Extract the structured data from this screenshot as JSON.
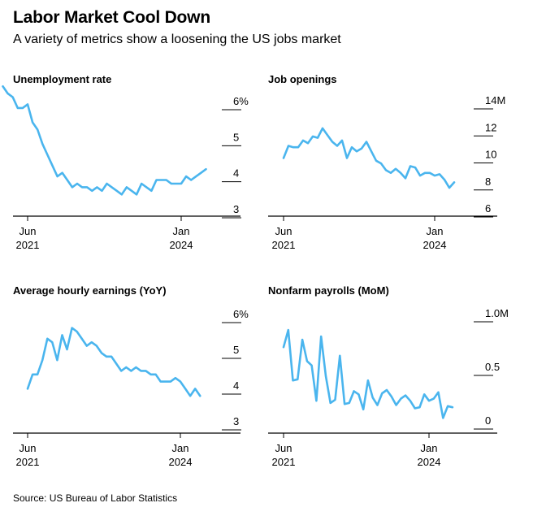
{
  "title": "Labor Market Cool Down",
  "subtitle": "A variety of metrics show a loosening the US jobs market",
  "source": "Source: US Bureau of Labor Statistics",
  "colors": {
    "line": "#4ab5ee",
    "axis": "#000000",
    "text": "#000000"
  },
  "chart_data": [
    {
      "type": "line",
      "title": "Unemployment rate",
      "x_tick_labels": [
        {
          "top": "Jun",
          "bottom": "2021"
        },
        {
          "top": "Jan",
          "bottom": "2024"
        }
      ],
      "y_ticks": [
        3,
        4,
        5,
        6
      ],
      "y_tick_labels": [
        "3",
        "4",
        "5",
        "6%"
      ],
      "ylim": [
        3,
        6
      ],
      "x_start": "2021-01",
      "series": [
        {
          "values": [
            6.4,
            6.2,
            6.1,
            5.8,
            5.8,
            5.9,
            5.4,
            5.2,
            4.8,
            4.5,
            4.2,
            3.9,
            4.0,
            3.8,
            3.6,
            3.7,
            3.6,
            3.6,
            3.5,
            3.6,
            3.5,
            3.7,
            3.6,
            3.5,
            3.4,
            3.6,
            3.5,
            3.4,
            3.7,
            3.6,
            3.5,
            3.8,
            3.8,
            3.8,
            3.7,
            3.7,
            3.7,
            3.9,
            3.8,
            3.9,
            4.0,
            4.1
          ]
        }
      ]
    },
    {
      "type": "line",
      "title": "Job openings",
      "x_tick_labels": [
        {
          "top": "Jun",
          "bottom": "2021"
        },
        {
          "top": "Jan",
          "bottom": "2024"
        }
      ],
      "y_ticks": [
        6,
        8,
        10,
        12,
        14
      ],
      "y_tick_labels": [
        "6",
        "8",
        "10",
        "12",
        "14M"
      ],
      "ylim": [
        6,
        14
      ],
      "x_start": "2021-06",
      "series": [
        {
          "values": [
            9.7,
            10.6,
            10.5,
            10.5,
            11.0,
            10.8,
            11.3,
            11.2,
            11.9,
            11.4,
            10.9,
            10.6,
            11.0,
            9.7,
            10.5,
            10.2,
            10.4,
            10.9,
            10.2,
            9.5,
            9.3,
            8.8,
            8.6,
            8.9,
            8.6,
            8.2,
            9.1,
            9.0,
            8.4,
            8.6,
            8.6,
            8.4,
            8.5,
            8.1,
            7.5,
            7.9
          ]
        }
      ]
    },
    {
      "type": "line",
      "title": "Average hourly earnings (YoY)",
      "x_tick_labels": [
        {
          "top": "Jun",
          "bottom": "2021"
        },
        {
          "top": "Jan",
          "bottom": "2024"
        }
      ],
      "y_ticks": [
        3,
        4,
        5,
        6
      ],
      "y_tick_labels": [
        "3",
        "4",
        "5",
        "6%"
      ],
      "ylim": [
        3,
        6
      ],
      "x_start": "2021-06",
      "series": [
        {
          "values": [
            3.9,
            4.3,
            4.3,
            4.7,
            5.3,
            5.2,
            4.7,
            5.4,
            5.0,
            5.6,
            5.5,
            5.3,
            5.1,
            5.2,
            5.1,
            4.9,
            4.8,
            4.8,
            4.6,
            4.4,
            4.5,
            4.4,
            4.5,
            4.4,
            4.4,
            4.3,
            4.3,
            4.1,
            4.1,
            4.1,
            4.2,
            4.1,
            3.9,
            3.7,
            3.9,
            3.7
          ]
        }
      ]
    },
    {
      "type": "line",
      "title": "Nonfarm payrolls (MoM)",
      "x_tick_labels": [
        {
          "top": "Jun",
          "bottom": "2021"
        },
        {
          "top": "Jan",
          "bottom": "2024"
        }
      ],
      "y_ticks": [
        0,
        0.5,
        1.0
      ],
      "y_tick_labels": [
        "0",
        "0.5",
        "1.0M"
      ],
      "ylim": [
        0,
        1.0
      ],
      "x_start": "2021-06",
      "series": [
        {
          "values": [
            0.68,
            0.84,
            0.37,
            0.38,
            0.75,
            0.55,
            0.51,
            0.18,
            0.78,
            0.41,
            0.16,
            0.19,
            0.6,
            0.15,
            0.16,
            0.27,
            0.24,
            0.1,
            0.37,
            0.21,
            0.14,
            0.25,
            0.28,
            0.22,
            0.14,
            0.2,
            0.23,
            0.18,
            0.11,
            0.12,
            0.24,
            0.18,
            0.2,
            0.26,
            0.02,
            0.13,
            0.12
          ]
        }
      ]
    }
  ]
}
